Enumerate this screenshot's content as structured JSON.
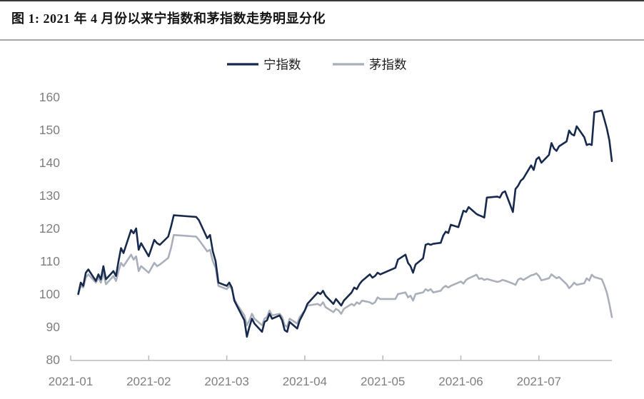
{
  "figure": {
    "title": "图 1: 2021 年 4 月份以来宁指数和茅指数走势明显分化"
  },
  "colors": {
    "ning_line": "#17294d",
    "mao_line": "#a9b0ba",
    "axis_line": "#bcbcbc",
    "tick_label": "#7f7f7f",
    "legend_text": "#1f1f1f",
    "title_text": "#141414"
  },
  "chart_data": {
    "type": "line",
    "title": "2021 年 4 月份以来宁指数和茅指数走势明显分化",
    "xlabel": "",
    "ylabel": "",
    "ylim": [
      80,
      160
    ],
    "yticks": [
      80,
      90,
      100,
      110,
      120,
      130,
      140,
      150,
      160
    ],
    "xticks": [
      "2021-01",
      "2021-02",
      "2021-03",
      "2021-04",
      "2021-05",
      "2021-06",
      "2021-07"
    ],
    "grid": false,
    "legend_position": "top",
    "x": [
      "2021-01-04",
      "2021-01-05",
      "2021-01-06",
      "2021-01-07",
      "2021-01-08",
      "2021-01-11",
      "2021-01-12",
      "2021-01-13",
      "2021-01-14",
      "2021-01-15",
      "2021-01-18",
      "2021-01-19",
      "2021-01-20",
      "2021-01-21",
      "2021-01-22",
      "2021-01-25",
      "2021-01-26",
      "2021-01-27",
      "2021-01-28",
      "2021-01-29",
      "2021-02-01",
      "2021-02-02",
      "2021-02-03",
      "2021-02-04",
      "2021-02-05",
      "2021-02-08",
      "2021-02-09",
      "2021-02-10",
      "2021-02-18",
      "2021-02-19",
      "2021-02-22",
      "2021-02-23",
      "2021-02-24",
      "2021-02-25",
      "2021-02-26",
      "2021-03-01",
      "2021-03-02",
      "2021-03-03",
      "2021-03-04",
      "2021-03-05",
      "2021-03-08",
      "2021-03-09",
      "2021-03-10",
      "2021-03-11",
      "2021-03-12",
      "2021-03-15",
      "2021-03-16",
      "2021-03-17",
      "2021-03-18",
      "2021-03-19",
      "2021-03-22",
      "2021-03-23",
      "2021-03-24",
      "2021-03-25",
      "2021-03-26",
      "2021-03-29",
      "2021-03-30",
      "2021-03-31",
      "2021-04-01",
      "2021-04-02",
      "2021-04-06",
      "2021-04-07",
      "2021-04-08",
      "2021-04-09",
      "2021-04-12",
      "2021-04-13",
      "2021-04-14",
      "2021-04-15",
      "2021-04-16",
      "2021-04-19",
      "2021-04-20",
      "2021-04-21",
      "2021-04-22",
      "2021-04-23",
      "2021-04-26",
      "2021-04-27",
      "2021-04-28",
      "2021-04-29",
      "2021-04-30",
      "2021-05-06",
      "2021-05-07",
      "2021-05-10",
      "2021-05-11",
      "2021-05-12",
      "2021-05-13",
      "2021-05-14",
      "2021-05-17",
      "2021-05-18",
      "2021-05-19",
      "2021-05-20",
      "2021-05-21",
      "2021-05-24",
      "2021-05-25",
      "2021-05-26",
      "2021-05-27",
      "2021-05-28",
      "2021-05-31",
      "2021-06-01",
      "2021-06-02",
      "2021-06-03",
      "2021-06-04",
      "2021-06-07",
      "2021-06-08",
      "2021-06-09",
      "2021-06-10",
      "2021-06-11",
      "2021-06-15",
      "2021-06-16",
      "2021-06-17",
      "2021-06-18",
      "2021-06-21",
      "2021-06-22",
      "2021-06-23",
      "2021-06-24",
      "2021-06-25",
      "2021-06-28",
      "2021-06-29",
      "2021-06-30",
      "2021-07-01",
      "2021-07-02",
      "2021-07-05",
      "2021-07-06",
      "2021-07-07",
      "2021-07-08",
      "2021-07-09",
      "2021-07-12",
      "2021-07-13",
      "2021-07-14",
      "2021-07-15",
      "2021-07-16",
      "2021-07-19",
      "2021-07-20",
      "2021-07-21",
      "2021-07-22",
      "2021-07-23",
      "2021-07-26",
      "2021-07-27",
      "2021-07-28",
      "2021-07-29",
      "2021-07-30"
    ],
    "series": [
      {
        "name": "宁指数",
        "color": "#17294d",
        "values": [
          100,
          103.5,
          102.5,
          106.5,
          107.5,
          104,
          106,
          104.5,
          108.5,
          104.5,
          107,
          105.5,
          110,
          114,
          112.5,
          119.5,
          118.5,
          120,
          113.5,
          115.5,
          111.5,
          114,
          116.5,
          115.5,
          115,
          117.5,
          120.5,
          124,
          123.5,
          122.5,
          117,
          118,
          113,
          110,
          103.5,
          102.5,
          103.5,
          102,
          98,
          96.5,
          92,
          87,
          90,
          92.5,
          91,
          88.5,
          91.5,
          92,
          94,
          92.5,
          93.5,
          92,
          89,
          88.5,
          91.5,
          89.5,
          92,
          93.5,
          95,
          97,
          100.5,
          100,
          101,
          99.5,
          97,
          98.5,
          97.5,
          96.5,
          98,
          100.5,
          102,
          101.5,
          103,
          104,
          106,
          105,
          105.5,
          106.5,
          106,
          108,
          110.5,
          112,
          109.5,
          108.5,
          106.5,
          109,
          110.9,
          115,
          115.3,
          115,
          115.3,
          115.6,
          117.8,
          119,
          118.6,
          121.1,
          120.4,
          122.9,
          125.4,
          125,
          126.5,
          124.4,
          124,
          123.7,
          123.3,
          129.4,
          129.7,
          129.4,
          130.9,
          131.3,
          125,
          132,
          133,
          134.5,
          135.2,
          139.2,
          137.8,
          141,
          141.7,
          140,
          142.4,
          146,
          144.3,
          143.6,
          145,
          146.5,
          149.8,
          148.7,
          148.3,
          151.1,
          147.8,
          145.4,
          145.7,
          145.4,
          155.4,
          155.9,
          153.2,
          150.4,
          146.8,
          140.5
        ]
      },
      {
        "name": "茅指数",
        "color": "#a9b0ba",
        "values": [
          100,
          102.5,
          102,
          105,
          106,
          103.5,
          105,
          103.5,
          106.5,
          103,
          105.5,
          104,
          107,
          109.5,
          108.5,
          112,
          110.5,
          111.5,
          107,
          108.5,
          106.5,
          108,
          109.5,
          108.5,
          109,
          111,
          114,
          118,
          117.5,
          116.5,
          113,
          113.5,
          110,
          108,
          102.5,
          101.5,
          102.5,
          101.5,
          98.5,
          97,
          93.5,
          90.5,
          92,
          94,
          92.5,
          90.5,
          92.5,
          93,
          95,
          93.5,
          94,
          93,
          90.5,
          90,
          92.5,
          91,
          93,
          94,
          95,
          96.5,
          97,
          96.5,
          97.5,
          96,
          94.5,
          95.5,
          95,
          94,
          95.5,
          97,
          96.5,
          97.5,
          97,
          98,
          97.5,
          97,
          97.5,
          99,
          98.5,
          98.5,
          100,
          100.5,
          99,
          99.5,
          98,
          100,
          100.5,
          101.5,
          101,
          101.5,
          100.5,
          101,
          102,
          102.5,
          102,
          102.5,
          103.5,
          103.8,
          103.2,
          104.3,
          104.8,
          105.9,
          104.6,
          104.8,
          104.3,
          104.6,
          103.7,
          103.9,
          104.3,
          104.1,
          103.2,
          102.8,
          104.4,
          104.8,
          104.3,
          105.7,
          105.9,
          106.3,
          105.5,
          104.2,
          104.8,
          106,
          105.4,
          104.8,
          105.2,
          103,
          101.8,
          102.5,
          103.5,
          102.8,
          103.3,
          104.8,
          104.1,
          105.9,
          105.2,
          104.5,
          102.6,
          100.4,
          97,
          93
        ]
      }
    ]
  }
}
